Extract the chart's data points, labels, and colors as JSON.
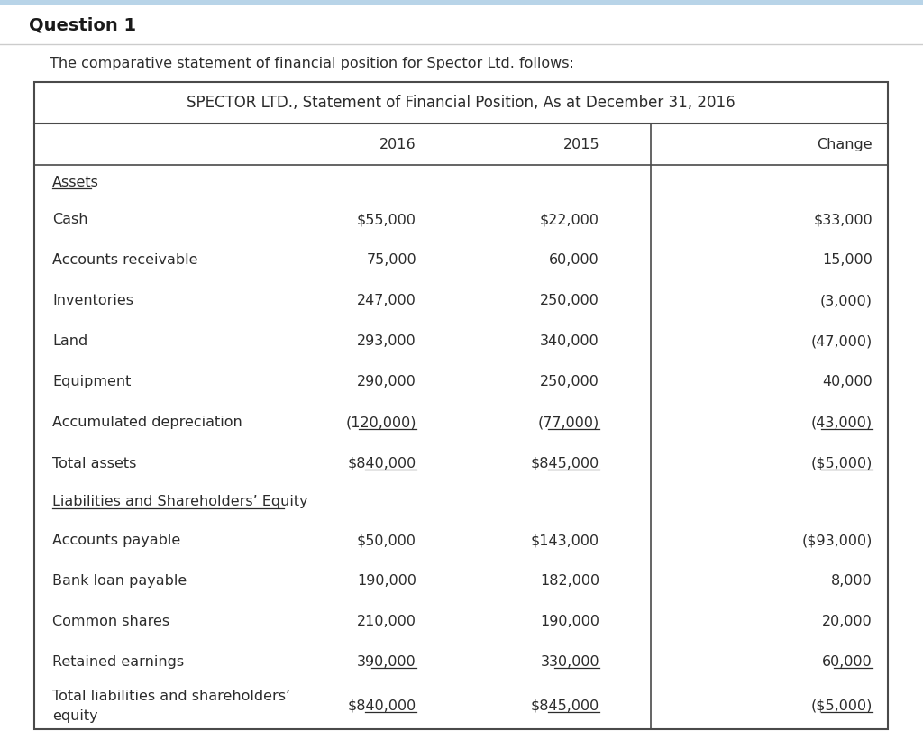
{
  "page_title": "Question 1",
  "intro_text": "The comparative statement of financial position for Spector Ltd. follows:",
  "table_title": "SPECTOR LTD., Statement of Financial Position, As at December 31, 2016",
  "col_headers": [
    "",
    "2016",
    "2015",
    "Change"
  ],
  "rows": [
    {
      "label": "Assets",
      "val2016": "",
      "val2015": "",
      "change": "",
      "underline_label": true,
      "is_section": true
    },
    {
      "label": "Cash",
      "val2016": "$55,000",
      "val2015": "$22,000",
      "change": "$33,000",
      "underline_label": false,
      "is_section": false
    },
    {
      "label": "Accounts receivable",
      "val2016": "75,000",
      "val2015": "60,000",
      "change": "15,000",
      "underline_label": false,
      "is_section": false
    },
    {
      "label": "Inventories",
      "val2016": "247,000",
      "val2015": "250,000",
      "change": "(3,000)",
      "underline_label": false,
      "is_section": false
    },
    {
      "label": "Land",
      "val2016": "293,000",
      "val2015": "340,000",
      "change": "(47,000)",
      "underline_label": false,
      "is_section": false
    },
    {
      "label": "Equipment",
      "val2016": "290,000",
      "val2015": "250,000",
      "change": "40,000",
      "underline_label": false,
      "is_section": false
    },
    {
      "label": "Accumulated depreciation",
      "val2016": "(120,000)",
      "val2015": "(77,000)",
      "change": "(43,000)",
      "underline_label": false,
      "underline_values": true,
      "is_section": false
    },
    {
      "label": "Total assets",
      "val2016": "$840,000",
      "val2015": "$845,000",
      "change": "($5,000)",
      "underline_label": false,
      "underline_values": true,
      "is_section": false
    },
    {
      "label": "Liabilities and Shareholders’ Equity",
      "val2016": "",
      "val2015": "",
      "change": "",
      "underline_label": true,
      "is_section": true
    },
    {
      "label": "Accounts payable",
      "val2016": "$50,000",
      "val2015": "$143,000",
      "change": "($93,000)",
      "underline_label": false,
      "is_section": false
    },
    {
      "label": "Bank loan payable",
      "val2016": "190,000",
      "val2015": "182,000",
      "change": "8,000",
      "underline_label": false,
      "is_section": false
    },
    {
      "label": "Common shares",
      "val2016": "210,000",
      "val2015": "190,000",
      "change": "20,000",
      "underline_label": false,
      "is_section": false
    },
    {
      "label": "Retained earnings",
      "val2016": "390,000",
      "val2015": "330,000",
      "change": "60,000",
      "underline_label": false,
      "underline_values": true,
      "is_section": false
    },
    {
      "label": "Total liabilities and shareholders’",
      "label2": "equity",
      "val2016": "$840,000",
      "val2015": "$845,000",
      "change": "($5,000)",
      "underline_label": false,
      "underline_values": true,
      "is_section": false,
      "label_wrap": true
    }
  ],
  "bg_color": "#ffffff",
  "text_color": "#2c2c2c",
  "border_color": "#4a4a4a",
  "font_size": 11.5,
  "title_font_size": 12
}
